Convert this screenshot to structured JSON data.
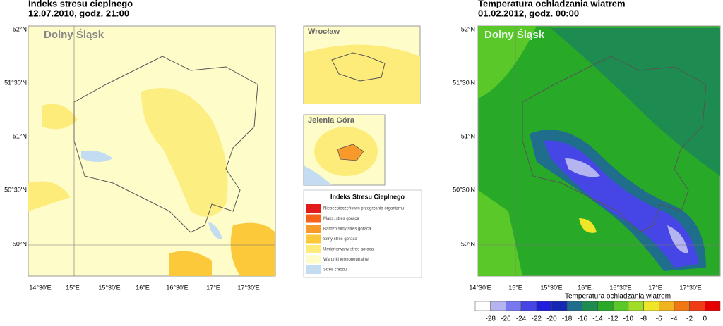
{
  "left_map": {
    "title": "Indeks stresu cieplnego",
    "subtitle": "12.07.2010, godz. 21:00",
    "label": "Dolny Śląsk",
    "lat_labels": [
      "52°N",
      "51°30'N",
      "51°N",
      "50°30'N",
      "50°N"
    ],
    "lon_labels": [
      "14°30'E",
      "15°E",
      "15°30'E",
      "16°E",
      "16°30'E",
      "17°E",
      "17°30'E"
    ]
  },
  "insets": [
    "Wrocław",
    "Jelenia Góra"
  ],
  "legend": {
    "title": "Indeks Stresu Cieplnego",
    "items": [
      {
        "label": "Niebezpieczeństwo przegrzania organizmu",
        "color": "#e31a1c"
      },
      {
        "label": "Maks. stres gorąca",
        "color": "#f4621c"
      },
      {
        "label": "Bardzo silny stres gorąca",
        "color": "#f79a2a"
      },
      {
        "label": "Silny stres gorąca",
        "color": "#fbc93a"
      },
      {
        "label": "Umiarkowany stres gorąca",
        "color": "#fdec7a"
      },
      {
        "label": "Warunki termoneutralne",
        "color": "#fefcc8"
      },
      {
        "label": "Stres chłodu",
        "color": "#c3dcf2"
      }
    ]
  },
  "right_map": {
    "title": "Temperatura ochładzania wiatrem",
    "subtitle": "01.02.2012, godz. 00:00",
    "label": "Dolny Śląsk",
    "lat_labels": [
      "52°N",
      "51°30'N",
      "51°N",
      "50°30'N",
      "50°N"
    ],
    "lon_labels": [
      "14°30'E",
      "15°E",
      "15°30'E",
      "16°E",
      "16°30'E",
      "17°E",
      "17°30'E"
    ]
  },
  "colorbar": {
    "title": "Temperatura ochładzania wiatrem",
    "ticks": [
      -28,
      -26,
      -24,
      -22,
      -20,
      -18,
      -16,
      -14,
      -12,
      -10,
      -8,
      -6,
      -4,
      -2,
      0
    ],
    "colors": [
      "#ffffff",
      "#b4b4f0",
      "#7878f0",
      "#4646e6",
      "#1e1edc",
      "#1428b4",
      "#1e6e8c",
      "#1e8c50",
      "#28aa28",
      "#5ac828",
      "#a0dc28",
      "#f0e628",
      "#f0b41e",
      "#f07814",
      "#f03c14",
      "#e60000"
    ]
  }
}
